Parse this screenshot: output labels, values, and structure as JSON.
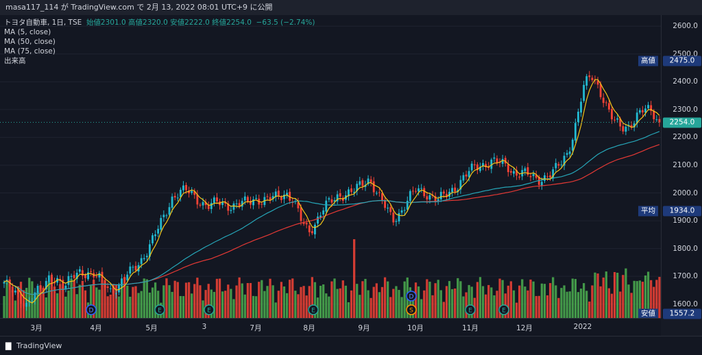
{
  "header": {
    "text": "masa117_114 が TradingView.com で 2月 13, 2022 08:01 UTC+9 に公開"
  },
  "legend": {
    "symbol": "トヨタ自動車, 1日, TSE",
    "ohlc": "始値2301.0 高値2320.0 安値2222.0 終値2254.0",
    "change": "−63.5 (−2.74%)",
    "ma5": "MA (5, close)",
    "ma50": "MA (50, close)",
    "ma75": "MA (75, close)",
    "volume": "出来高"
  },
  "colors": {
    "up": "#26a69a",
    "down": "#ef5350",
    "up_candle": "#22b8cf",
    "down_candle": "#f44336",
    "vol_up": "#4caf50",
    "vol_down": "#f44336",
    "ma5": "#f5c518",
    "ma50": "#26a6b8",
    "ma75": "#e53935",
    "tag_bg": "#1e3a7a",
    "last_price": "#26a69a"
  },
  "axis": {
    "ticks": [
      "2600.0",
      "2500.0",
      "2400.0",
      "2300.0",
      "2200.0",
      "2100.0",
      "2000.0",
      "1900.0",
      "1800.0",
      "1700.0",
      "1600.0"
    ],
    "tick_values": [
      2600,
      2500,
      2400,
      2300,
      2200,
      2100,
      2000,
      1900,
      1800,
      1700,
      1600
    ],
    "high_tag": {
      "label": "高値",
      "value": "2475.0"
    },
    "last_tag": {
      "value": "2254.0"
    },
    "avg_tag": {
      "label": "平均",
      "value": "1934.0"
    },
    "low_tag": {
      "label": "安値",
      "value": "1557.2"
    }
  },
  "time_axis": [
    "3月",
    "4月",
    "5月",
    "3",
    "7月",
    "8月",
    "9月",
    "10月",
    "11月",
    "12月",
    "2022"
  ],
  "events": [
    "D",
    "E",
    "E",
    "E",
    "D",
    "S",
    "E",
    "E"
  ],
  "footer": {
    "brand": "TradingView"
  },
  "chart_data": {
    "type": "candlestick",
    "title": "トヨタ自動車, 1日, TSE",
    "ylim": [
      1550,
      2640
    ],
    "last": {
      "open": 2301.0,
      "high": 2320.0,
      "low": 2222.0,
      "close": 2254.0,
      "change": -63.5,
      "change_pct": -2.74
    },
    "high": 2475.0,
    "low": 1557.2,
    "average": 1934.0,
    "close_series": [
      1680,
      1650,
      1620,
      1600,
      1640,
      1650,
      1700,
      1690,
      1660,
      1700,
      1720,
      1710,
      1700,
      1680,
      1650,
      1660,
      1700,
      1730,
      1760,
      1800,
      1860,
      1920,
      1980,
      2000,
      2010,
      1990,
      1960,
      1950,
      1970,
      1960,
      1950,
      1960,
      1970,
      1980,
      1970,
      1980,
      1990,
      2000,
      1970,
      1900,
      1860,
      1900,
      1950,
      1970,
      1990,
      2000,
      2010,
      2030,
      2050,
      2000,
      1950,
      1900,
      1930,
      1980,
      2010,
      2000,
      1990,
      1980,
      1990,
      2010,
      2050,
      2080,
      2090,
      2100,
      2120,
      2110,
      2090,
      2070,
      2080,
      2060,
      2040,
      2060,
      2080,
      2100,
      2140,
      2250,
      2380,
      2420,
      2380,
      2320,
      2260,
      2230,
      2240,
      2280,
      2300,
      2290,
      2254
    ],
    "series": [
      {
        "name": "MA (5, close)"
      },
      {
        "name": "MA (50, close)"
      },
      {
        "name": "MA (75, close)"
      },
      {
        "name": "出来高"
      }
    ]
  }
}
